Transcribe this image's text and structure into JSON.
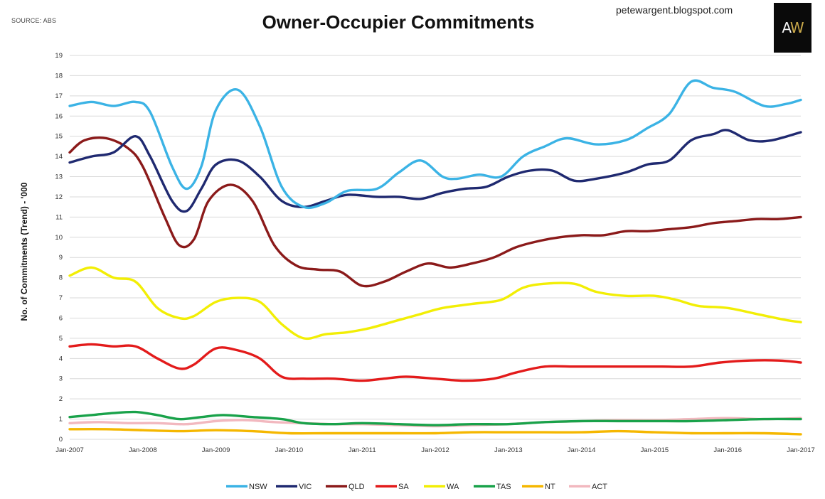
{
  "header": {
    "source": "SOURCE: ABS",
    "title": "Owner-Occupier Commitments",
    "site": "petewargent.blogspot.com",
    "logo_text": "AW"
  },
  "chart_data": {
    "type": "line",
    "title": "Owner-Occupier Commitments",
    "xlabel": "",
    "ylabel": "No. of Commitments (Trend) - '000",
    "ylim": [
      0,
      19
    ],
    "yticks": [
      0,
      1,
      2,
      3,
      4,
      5,
      6,
      7,
      8,
      9,
      10,
      11,
      12,
      13,
      14,
      15,
      16,
      17,
      18,
      19
    ],
    "xlim": [
      2007,
      2017
    ],
    "xticks": [
      "Jan-2007",
      "Jan-2008",
      "Jan-2009",
      "Jan-2010",
      "Jan-2011",
      "Jan-2012",
      "Jan-2013",
      "Jan-2014",
      "Jan-2015",
      "Jan-2016",
      "Jan-2017"
    ],
    "grid": "horizontal",
    "legend_position": "bottom",
    "series": [
      {
        "name": "NSW",
        "color": "#3bb3e5",
        "points": [
          [
            2007.0,
            16.5
          ],
          [
            2007.3,
            16.7
          ],
          [
            2007.6,
            16.5
          ],
          [
            2007.9,
            16.7
          ],
          [
            2008.1,
            16.2
          ],
          [
            2008.4,
            13.5
          ],
          [
            2008.6,
            12.4
          ],
          [
            2008.8,
            13.5
          ],
          [
            2009.0,
            16.3
          ],
          [
            2009.3,
            17.3
          ],
          [
            2009.6,
            15.5
          ],
          [
            2009.9,
            12.5
          ],
          [
            2010.2,
            11.5
          ],
          [
            2010.5,
            11.7
          ],
          [
            2010.8,
            12.3
          ],
          [
            2011.2,
            12.4
          ],
          [
            2011.5,
            13.2
          ],
          [
            2011.8,
            13.8
          ],
          [
            2012.1,
            13.0
          ],
          [
            2012.3,
            12.9
          ],
          [
            2012.6,
            13.1
          ],
          [
            2012.9,
            13.0
          ],
          [
            2013.2,
            14.0
          ],
          [
            2013.5,
            14.5
          ],
          [
            2013.8,
            14.9
          ],
          [
            2014.2,
            14.6
          ],
          [
            2014.6,
            14.8
          ],
          [
            2014.9,
            15.4
          ],
          [
            2015.2,
            16.1
          ],
          [
            2015.5,
            17.7
          ],
          [
            2015.8,
            17.4
          ],
          [
            2016.1,
            17.2
          ],
          [
            2016.5,
            16.5
          ],
          [
            2016.8,
            16.6
          ],
          [
            2017.0,
            16.8
          ]
        ]
      },
      {
        "name": "VIC",
        "color": "#1f2970",
        "points": [
          [
            2007.0,
            13.7
          ],
          [
            2007.3,
            14.0
          ],
          [
            2007.6,
            14.2
          ],
          [
            2007.9,
            15.0
          ],
          [
            2008.1,
            14.0
          ],
          [
            2008.4,
            11.8
          ],
          [
            2008.6,
            11.3
          ],
          [
            2008.8,
            12.4
          ],
          [
            2009.0,
            13.6
          ],
          [
            2009.3,
            13.8
          ],
          [
            2009.6,
            13.0
          ],
          [
            2009.9,
            11.8
          ],
          [
            2010.2,
            11.5
          ],
          [
            2010.5,
            11.8
          ],
          [
            2010.8,
            12.1
          ],
          [
            2011.2,
            12.0
          ],
          [
            2011.5,
            12.0
          ],
          [
            2011.8,
            11.9
          ],
          [
            2012.1,
            12.2
          ],
          [
            2012.4,
            12.4
          ],
          [
            2012.7,
            12.5
          ],
          [
            2013.0,
            13.0
          ],
          [
            2013.3,
            13.3
          ],
          [
            2013.6,
            13.3
          ],
          [
            2013.9,
            12.8
          ],
          [
            2014.2,
            12.9
          ],
          [
            2014.6,
            13.2
          ],
          [
            2014.9,
            13.6
          ],
          [
            2015.2,
            13.8
          ],
          [
            2015.5,
            14.8
          ],
          [
            2015.8,
            15.1
          ],
          [
            2016.0,
            15.3
          ],
          [
            2016.3,
            14.8
          ],
          [
            2016.6,
            14.8
          ],
          [
            2017.0,
            15.2
          ]
        ]
      },
      {
        "name": "QLD",
        "color": "#8b1a1a",
        "points": [
          [
            2007.0,
            14.2
          ],
          [
            2007.2,
            14.8
          ],
          [
            2007.5,
            14.9
          ],
          [
            2007.8,
            14.4
          ],
          [
            2008.0,
            13.5
          ],
          [
            2008.3,
            11.0
          ],
          [
            2008.5,
            9.6
          ],
          [
            2008.7,
            9.9
          ],
          [
            2008.9,
            11.8
          ],
          [
            2009.2,
            12.6
          ],
          [
            2009.5,
            11.8
          ],
          [
            2009.8,
            9.6
          ],
          [
            2010.1,
            8.6
          ],
          [
            2010.4,
            8.4
          ],
          [
            2010.7,
            8.3
          ],
          [
            2011.0,
            7.6
          ],
          [
            2011.3,
            7.8
          ],
          [
            2011.6,
            8.3
          ],
          [
            2011.9,
            8.7
          ],
          [
            2012.2,
            8.5
          ],
          [
            2012.5,
            8.7
          ],
          [
            2012.8,
            9.0
          ],
          [
            2013.1,
            9.5
          ],
          [
            2013.4,
            9.8
          ],
          [
            2013.7,
            10.0
          ],
          [
            2014.0,
            10.1
          ],
          [
            2014.3,
            10.1
          ],
          [
            2014.6,
            10.3
          ],
          [
            2014.9,
            10.3
          ],
          [
            2015.2,
            10.4
          ],
          [
            2015.5,
            10.5
          ],
          [
            2015.8,
            10.7
          ],
          [
            2016.1,
            10.8
          ],
          [
            2016.4,
            10.9
          ],
          [
            2016.7,
            10.9
          ],
          [
            2017.0,
            11.0
          ]
        ]
      },
      {
        "name": "SA",
        "color": "#e31b1b",
        "points": [
          [
            2007.0,
            4.6
          ],
          [
            2007.3,
            4.7
          ],
          [
            2007.6,
            4.6
          ],
          [
            2007.9,
            4.6
          ],
          [
            2008.2,
            4.0
          ],
          [
            2008.5,
            3.5
          ],
          [
            2008.7,
            3.7
          ],
          [
            2009.0,
            4.5
          ],
          [
            2009.3,
            4.4
          ],
          [
            2009.6,
            4.0
          ],
          [
            2009.9,
            3.1
          ],
          [
            2010.2,
            3.0
          ],
          [
            2010.6,
            3.0
          ],
          [
            2011.0,
            2.9
          ],
          [
            2011.3,
            3.0
          ],
          [
            2011.6,
            3.1
          ],
          [
            2012.0,
            3.0
          ],
          [
            2012.4,
            2.9
          ],
          [
            2012.8,
            3.0
          ],
          [
            2013.1,
            3.3
          ],
          [
            2013.5,
            3.6
          ],
          [
            2013.9,
            3.6
          ],
          [
            2014.3,
            3.6
          ],
          [
            2014.7,
            3.6
          ],
          [
            2015.1,
            3.6
          ],
          [
            2015.5,
            3.6
          ],
          [
            2015.9,
            3.8
          ],
          [
            2016.3,
            3.9
          ],
          [
            2016.7,
            3.9
          ],
          [
            2017.0,
            3.8
          ]
        ]
      },
      {
        "name": "WA",
        "color": "#f2ee05",
        "points": [
          [
            2007.0,
            8.1
          ],
          [
            2007.3,
            8.5
          ],
          [
            2007.6,
            8.0
          ],
          [
            2007.9,
            7.8
          ],
          [
            2008.2,
            6.5
          ],
          [
            2008.5,
            6.0
          ],
          [
            2008.7,
            6.1
          ],
          [
            2009.0,
            6.8
          ],
          [
            2009.3,
            7.0
          ],
          [
            2009.6,
            6.8
          ],
          [
            2009.9,
            5.7
          ],
          [
            2010.2,
            5.0
          ],
          [
            2010.5,
            5.2
          ],
          [
            2010.8,
            5.3
          ],
          [
            2011.1,
            5.5
          ],
          [
            2011.5,
            5.9
          ],
          [
            2011.8,
            6.2
          ],
          [
            2012.1,
            6.5
          ],
          [
            2012.5,
            6.7
          ],
          [
            2012.9,
            6.9
          ],
          [
            2013.2,
            7.5
          ],
          [
            2013.5,
            7.7
          ],
          [
            2013.9,
            7.7
          ],
          [
            2014.2,
            7.3
          ],
          [
            2014.6,
            7.1
          ],
          [
            2015.0,
            7.1
          ],
          [
            2015.3,
            6.9
          ],
          [
            2015.6,
            6.6
          ],
          [
            2016.0,
            6.5
          ],
          [
            2016.4,
            6.2
          ],
          [
            2016.8,
            5.9
          ],
          [
            2017.0,
            5.8
          ]
        ]
      },
      {
        "name": "TAS",
        "color": "#19a24a",
        "points": [
          [
            2007.0,
            1.1
          ],
          [
            2007.3,
            1.2
          ],
          [
            2007.6,
            1.3
          ],
          [
            2007.9,
            1.35
          ],
          [
            2008.2,
            1.2
          ],
          [
            2008.5,
            1.0
          ],
          [
            2008.8,
            1.1
          ],
          [
            2009.1,
            1.2
          ],
          [
            2009.5,
            1.1
          ],
          [
            2009.9,
            1.0
          ],
          [
            2010.2,
            0.8
          ],
          [
            2010.6,
            0.75
          ],
          [
            2011.0,
            0.8
          ],
          [
            2011.5,
            0.75
          ],
          [
            2012.0,
            0.7
          ],
          [
            2012.5,
            0.75
          ],
          [
            2013.0,
            0.75
          ],
          [
            2013.5,
            0.85
          ],
          [
            2014.0,
            0.9
          ],
          [
            2014.5,
            0.9
          ],
          [
            2015.0,
            0.9
          ],
          [
            2015.5,
            0.9
          ],
          [
            2016.0,
            0.95
          ],
          [
            2016.5,
            1.0
          ],
          [
            2017.0,
            1.0
          ]
        ]
      },
      {
        "name": "NT",
        "color": "#f5b700",
        "points": [
          [
            2007.0,
            0.5
          ],
          [
            2007.5,
            0.5
          ],
          [
            2008.0,
            0.45
          ],
          [
            2008.5,
            0.4
          ],
          [
            2009.0,
            0.45
          ],
          [
            2009.5,
            0.4
          ],
          [
            2010.0,
            0.3
          ],
          [
            2010.5,
            0.3
          ],
          [
            2011.0,
            0.3
          ],
          [
            2011.5,
            0.3
          ],
          [
            2012.0,
            0.3
          ],
          [
            2012.5,
            0.35
          ],
          [
            2013.0,
            0.35
          ],
          [
            2013.5,
            0.35
          ],
          [
            2014.0,
            0.35
          ],
          [
            2014.5,
            0.4
          ],
          [
            2015.0,
            0.35
          ],
          [
            2015.5,
            0.3
          ],
          [
            2016.0,
            0.3
          ],
          [
            2016.5,
            0.3
          ],
          [
            2017.0,
            0.25
          ]
        ]
      },
      {
        "name": "ACT",
        "color": "#f2b8bf",
        "points": [
          [
            2007.0,
            0.8
          ],
          [
            2007.4,
            0.85
          ],
          [
            2007.8,
            0.8
          ],
          [
            2008.2,
            0.8
          ],
          [
            2008.6,
            0.75
          ],
          [
            2009.0,
            0.9
          ],
          [
            2009.4,
            0.95
          ],
          [
            2009.8,
            0.85
          ],
          [
            2010.2,
            0.8
          ],
          [
            2010.6,
            0.75
          ],
          [
            2011.0,
            0.75
          ],
          [
            2011.5,
            0.7
          ],
          [
            2012.0,
            0.65
          ],
          [
            2012.5,
            0.7
          ],
          [
            2013.0,
            0.75
          ],
          [
            2013.5,
            0.85
          ],
          [
            2014.0,
            0.9
          ],
          [
            2014.5,
            0.95
          ],
          [
            2015.0,
            0.95
          ],
          [
            2015.5,
            1.0
          ],
          [
            2016.0,
            1.05
          ],
          [
            2016.5,
            1.0
          ],
          [
            2017.0,
            1.05
          ]
        ]
      }
    ]
  }
}
